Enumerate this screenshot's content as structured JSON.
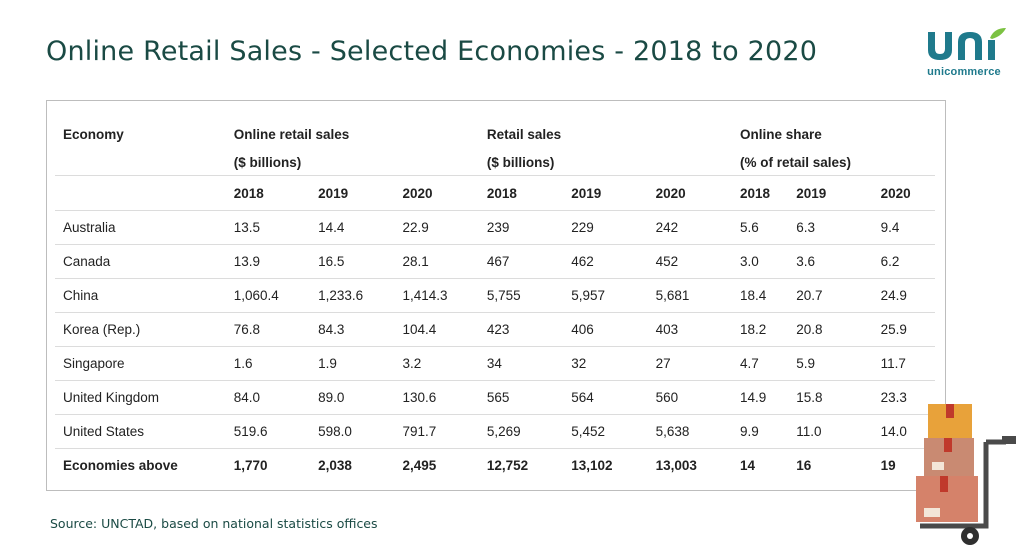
{
  "title": "Online Retail Sales - Selected Economies - 2018 to 2020",
  "logo": {
    "wordmark": "unicommerce",
    "icon": "unicommerce-logo-icon",
    "colors": [
      "#1f7a8c",
      "#7cc242"
    ]
  },
  "source": "Source: UNCTAD, based on national statistics offices",
  "colors": {
    "title": "#1a4a44",
    "rule": "#dcdcdc",
    "border": "#bdbdbd"
  },
  "decoration": {
    "icon": "hand-truck-boxes-icon"
  },
  "chart_data": {
    "type": "table",
    "header": {
      "economy": "Economy",
      "groups": [
        {
          "label": "Online retail sales",
          "unit": "($ billions)"
        },
        {
          "label": "Retail sales",
          "unit": "($ billions)"
        },
        {
          "label": "Online share",
          "unit": "(% of retail sales)"
        }
      ],
      "years": [
        "2018",
        "2019",
        "2020",
        "2018",
        "2019",
        "2020",
        "2018",
        "2019",
        "2020"
      ]
    },
    "rows": [
      {
        "economy": "Australia",
        "values": [
          "13.5",
          "14.4",
          "22.9",
          "239",
          "229",
          "242",
          "5.6",
          "6.3",
          "9.4"
        ]
      },
      {
        "economy": "Canada",
        "values": [
          "13.9",
          "16.5",
          "28.1",
          "467",
          "462",
          "452",
          "3.0",
          "3.6",
          "6.2"
        ]
      },
      {
        "economy": "China",
        "values": [
          "1,060.4",
          "1,233.6",
          "1,414.3",
          "5,755",
          "5,957",
          "5,681",
          "18.4",
          "20.7",
          "24.9"
        ]
      },
      {
        "economy": "Korea (Rep.)",
        "values": [
          "76.8",
          "84.3",
          "104.4",
          "423",
          "406",
          "403",
          "18.2",
          "20.8",
          "25.9"
        ]
      },
      {
        "economy": "Singapore",
        "values": [
          "1.6",
          "1.9",
          "3.2",
          "34",
          "32",
          "27",
          "4.7",
          "5.9",
          "11.7"
        ]
      },
      {
        "economy": "United Kingdom",
        "values": [
          "84.0",
          "89.0",
          "130.6",
          "565",
          "564",
          "560",
          "14.9",
          "15.8",
          "23.3"
        ]
      },
      {
        "economy": "United States",
        "values": [
          "519.6",
          "598.0",
          "791.7",
          "5,269",
          "5,452",
          "5,638",
          "9.9",
          "11.0",
          "14.0"
        ]
      }
    ],
    "total": {
      "economy": "Economies above",
      "values": [
        "1,770",
        "2,038",
        "2,495",
        "12,752",
        "13,102",
        "13,003",
        "14",
        "16",
        "19"
      ]
    }
  }
}
